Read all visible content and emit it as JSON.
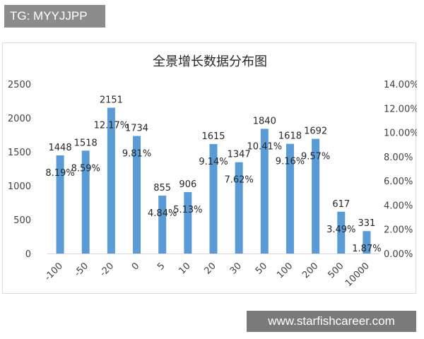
{
  "watermark": {
    "tg_label": "TG: MYYJJPP"
  },
  "site_badge": {
    "url_text": "www.starfishcareer.com"
  },
  "chart_data": {
    "type": "bar",
    "title": "全景增长数据分布图",
    "categories": [
      "-100",
      "-50",
      "-20",
      "0",
      "5",
      "10",
      "20",
      "30",
      "50",
      "100",
      "200",
      "500",
      "10000"
    ],
    "series": [
      {
        "values": [
          1448,
          1518,
          2151,
          1734,
          855,
          906,
          1615,
          1347,
          1840,
          1618,
          1692,
          617,
          331
        ],
        "percent_labels": [
          "8.19%",
          "8.59%",
          "12.17%",
          "9.81%",
          "4.84%",
          "5.13%",
          "9.14%",
          "7.62%",
          "10.41%",
          "9.16%",
          "9.57%",
          "3.49%",
          "1.87%"
        ],
        "color": "#5b9bd5"
      }
    ],
    "y_axis": {
      "min": 0,
      "max": 2500,
      "ticks": [
        0,
        500,
        1000,
        1500,
        2000,
        2500
      ]
    },
    "y2_axis": {
      "min": 0,
      "max": 14,
      "tick_labels": [
        "0.00%",
        "2.00%",
        "4.00%",
        "6.00%",
        "8.00%",
        "10.00%",
        "12.00%",
        "14.00%"
      ]
    },
    "grid": false,
    "legend": "none"
  }
}
